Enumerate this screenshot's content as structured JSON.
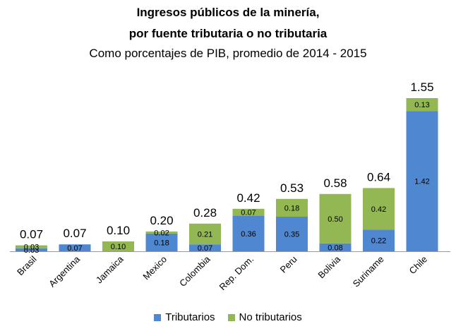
{
  "chart_data": {
    "type": "bar",
    "stacked": true,
    "title": "Ingresos públicos de la minería,",
    "title_line2": "por fuente tributaria  o no tributaria",
    "subtitle": "Como porcentajes de PIB, promedio de 2014 - 2015",
    "categories": [
      "Brasil",
      "Argentina",
      "Jamaica",
      "Mexico",
      "Colombia",
      "Rep. Dom.",
      "Peru",
      "Bolivia",
      "Suriname",
      "Chile"
    ],
    "series": [
      {
        "name": "Tributarios",
        "color": "#4f87d0",
        "values": [
          0.03,
          0.07,
          0.0,
          0.18,
          0.07,
          0.36,
          0.35,
          0.08,
          0.22,
          1.42
        ],
        "labels": [
          "0.03",
          "0.07",
          "",
          "0.18",
          "0.07",
          "0.36",
          "0.35",
          "0.08",
          "0.22",
          "1.42"
        ]
      },
      {
        "name": "No tributarios",
        "color": "#93b753",
        "values": [
          0.03,
          0.0,
          0.1,
          0.02,
          0.21,
          0.07,
          0.18,
          0.5,
          0.42,
          0.13
        ],
        "labels": [
          "0.03",
          "",
          "0.10",
          "0.02",
          "0.21",
          "0.07",
          "0.18",
          "0.50",
          "0.42",
          "0.13"
        ]
      }
    ],
    "totals": [
      "0.07",
      "0.07",
      "0.10",
      "0.20",
      "0.28",
      "0.42",
      "0.53",
      "0.58",
      "0.64",
      "1.55"
    ],
    "ylim": [
      0,
      1.6
    ],
    "grid": false,
    "legend": "bottom"
  }
}
